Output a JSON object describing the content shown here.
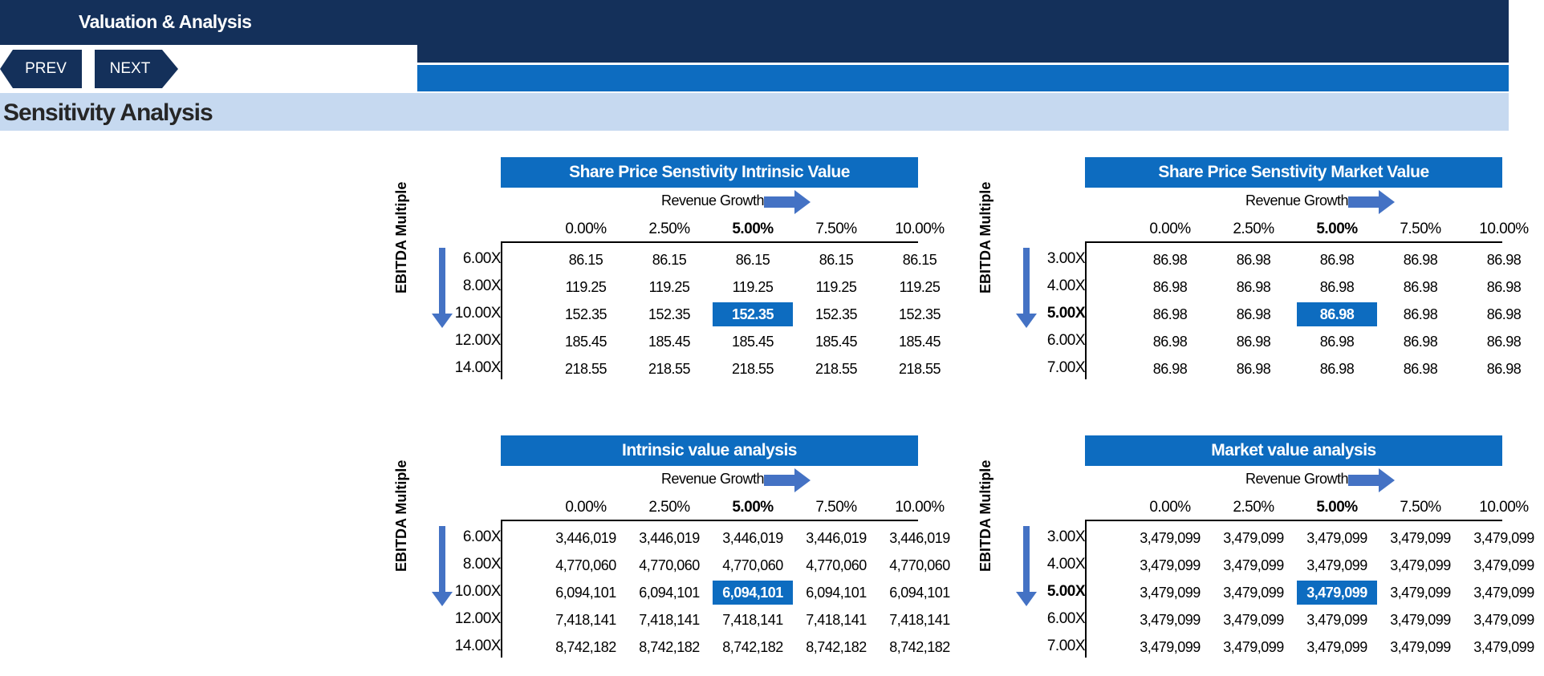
{
  "header": {
    "title": "Valuation & Analysis"
  },
  "nav": {
    "prev": "PREV",
    "next": "NEXT"
  },
  "section": {
    "title": "Sensitivity Analysis"
  },
  "colors": {
    "dark_navy": "#14305a",
    "accent_blue": "#0d6cc0",
    "light_band": "#c6d9f0"
  },
  "matrices": [
    {
      "title": "Share Price Senstivity  Intrinsic Value",
      "col_axis": "Revenue Growth",
      "row_axis": "EBITDA Multiple",
      "cols": [
        "0.00%",
        "2.50%",
        "5.00%",
        "7.50%",
        "10.00%"
      ],
      "rows": [
        "6.00X",
        "8.00X",
        "10.00X",
        "12.00X",
        "14.00X"
      ],
      "values": [
        [
          "86.15",
          "86.15",
          "86.15",
          "86.15",
          "86.15"
        ],
        [
          "119.25",
          "119.25",
          "119.25",
          "119.25",
          "119.25"
        ],
        [
          "152.35",
          "152.35",
          "152.35",
          "152.35",
          "152.35"
        ],
        [
          "185.45",
          "185.45",
          "185.45",
          "185.45",
          "185.45"
        ],
        [
          "218.55",
          "218.55",
          "218.55",
          "218.55",
          "218.55"
        ]
      ],
      "highlight": [
        2,
        2
      ],
      "bold_row": false
    },
    {
      "title": "Share Price Senstivity  Market Value",
      "col_axis": "Revenue Growth",
      "row_axis": "EBITDA Multiple",
      "cols": [
        "0.00%",
        "2.50%",
        "5.00%",
        "7.50%",
        "10.00%"
      ],
      "rows": [
        "3.00X",
        "4.00X",
        "5.00X",
        "6.00X",
        "7.00X"
      ],
      "values": [
        [
          "86.98",
          "86.98",
          "86.98",
          "86.98",
          "86.98"
        ],
        [
          "86.98",
          "86.98",
          "86.98",
          "86.98",
          "86.98"
        ],
        [
          "86.98",
          "86.98",
          "86.98",
          "86.98",
          "86.98"
        ],
        [
          "86.98",
          "86.98",
          "86.98",
          "86.98",
          "86.98"
        ],
        [
          "86.98",
          "86.98",
          "86.98",
          "86.98",
          "86.98"
        ]
      ],
      "highlight": [
        2,
        2
      ],
      "bold_row": true
    },
    {
      "title": "Intrinsic value analysis",
      "col_axis": "Revenue Growth",
      "row_axis": "EBITDA Multiple",
      "cols": [
        "0.00%",
        "2.50%",
        "5.00%",
        "7.50%",
        "10.00%"
      ],
      "rows": [
        "6.00X",
        "8.00X",
        "10.00X",
        "12.00X",
        "14.00X"
      ],
      "values": [
        [
          "3,446,019",
          "3,446,019",
          "3,446,019",
          "3,446,019",
          "3,446,019"
        ],
        [
          "4,770,060",
          "4,770,060",
          "4,770,060",
          "4,770,060",
          "4,770,060"
        ],
        [
          "6,094,101",
          "6,094,101",
          "6,094,101",
          "6,094,101",
          "6,094,101"
        ],
        [
          "7,418,141",
          "7,418,141",
          "7,418,141",
          "7,418,141",
          "7,418,141"
        ],
        [
          "8,742,182",
          "8,742,182",
          "8,742,182",
          "8,742,182",
          "8,742,182"
        ]
      ],
      "highlight": [
        2,
        2
      ],
      "bold_row": false
    },
    {
      "title": "Market value analysis",
      "col_axis": "Revenue Growth",
      "row_axis": "EBITDA Multiple",
      "cols": [
        "0.00%",
        "2.50%",
        "5.00%",
        "7.50%",
        "10.00%"
      ],
      "rows": [
        "3.00X",
        "4.00X",
        "5.00X",
        "6.00X",
        "7.00X"
      ],
      "values": [
        [
          "3,479,099",
          "3,479,099",
          "3,479,099",
          "3,479,099",
          "3,479,099"
        ],
        [
          "3,479,099",
          "3,479,099",
          "3,479,099",
          "3,479,099",
          "3,479,099"
        ],
        [
          "3,479,099",
          "3,479,099",
          "3,479,099",
          "3,479,099",
          "3,479,099"
        ],
        [
          "3,479,099",
          "3,479,099",
          "3,479,099",
          "3,479,099",
          "3,479,099"
        ],
        [
          "3,479,099",
          "3,479,099",
          "3,479,099",
          "3,479,099",
          "3,479,099"
        ]
      ],
      "highlight": [
        2,
        2
      ],
      "bold_row": true
    }
  ]
}
